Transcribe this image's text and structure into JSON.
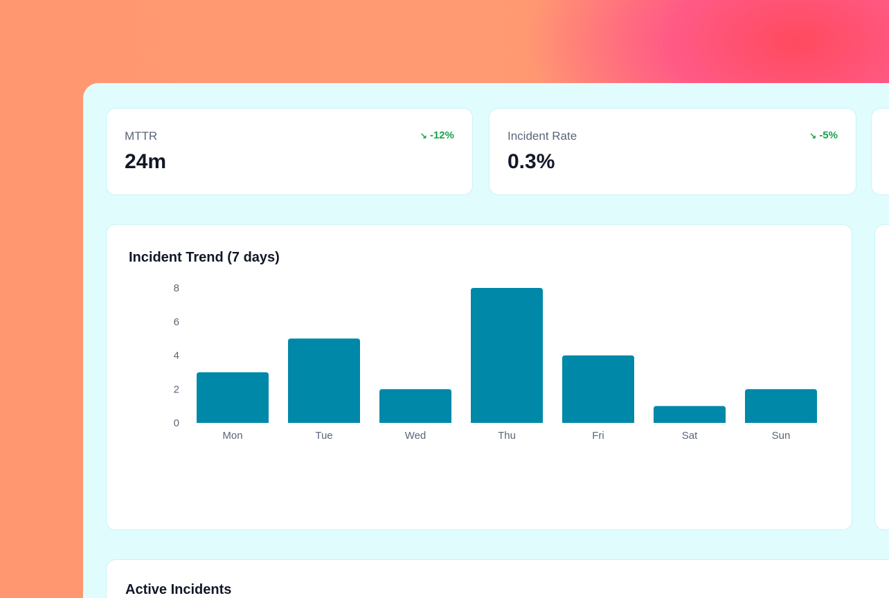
{
  "kpis": [
    {
      "label": "MTTR",
      "value": "24m",
      "delta": "-12%",
      "trend_icon": "trending-down-icon"
    },
    {
      "label": "Incident Rate",
      "value": "0.3%",
      "delta": "-5%",
      "trend_icon": "trending-down-icon"
    }
  ],
  "trend_card": {
    "title": "Incident Trend (7 days)"
  },
  "incidents_card": {
    "title": "Active Incidents"
  },
  "colors": {
    "bar": "#0088a8",
    "positive": "#16a34a"
  },
  "chart_data": {
    "type": "bar",
    "title": "Incident Trend (7 days)",
    "categories": [
      "Mon",
      "Tue",
      "Wed",
      "Thu",
      "Fri",
      "Sat",
      "Sun"
    ],
    "values": [
      3,
      5,
      2,
      8,
      4,
      1,
      2
    ],
    "ylim": [
      0,
      8
    ],
    "yticks": [
      "0",
      "2",
      "4",
      "6",
      "8"
    ],
    "grid": false
  }
}
